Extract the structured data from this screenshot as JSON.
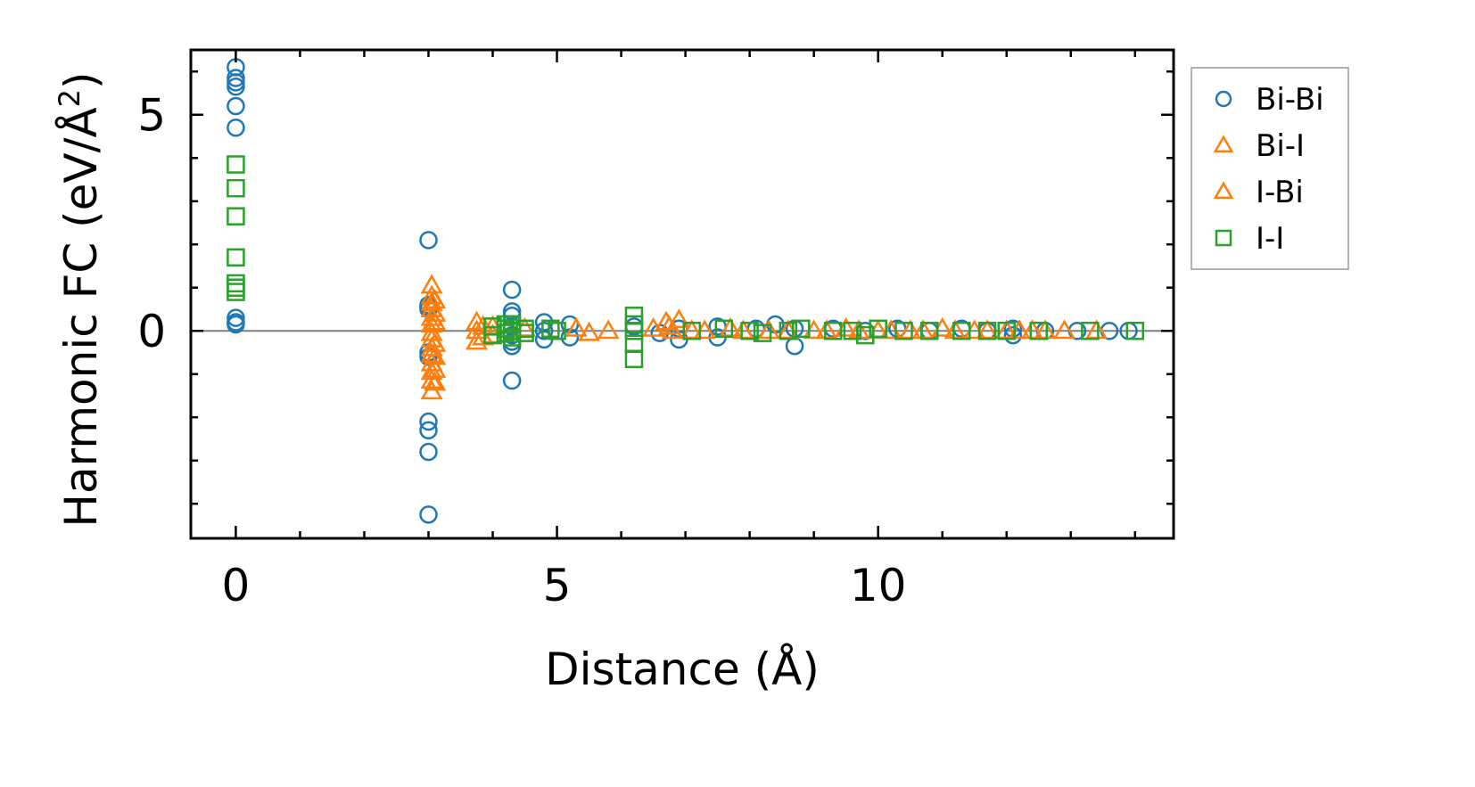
{
  "chart_data": {
    "type": "scatter",
    "title": "",
    "xlabel": "Distance (Å)",
    "ylabel_main": "Harmonic FC (eV/Å",
    "ylabel_sup": "2",
    "ylabel_end": ")",
    "xlim": [
      -0.7,
      14.6
    ],
    "ylim": [
      -4.8,
      6.5
    ],
    "xticks": [
      0,
      5,
      10
    ],
    "xtick_labels": [
      "0",
      "5",
      "10"
    ],
    "yticks": [
      0,
      5
    ],
    "ytick_labels": [
      "0",
      "5"
    ],
    "x_minor_step": 1,
    "y_minor_step": 1,
    "zero_line": true,
    "legend_position": "right, outside plot area",
    "series": [
      {
        "name": "Bi-Bi",
        "marker": "circle",
        "color": "#1f77b4",
        "points": [
          [
            0,
            6.1
          ],
          [
            0,
            5.85
          ],
          [
            0,
            5.75
          ],
          [
            0,
            5.65
          ],
          [
            0,
            5.2
          ],
          [
            0,
            4.7
          ],
          [
            0,
            0.3
          ],
          [
            0,
            0.2
          ],
          [
            0,
            0.15
          ],
          [
            3.0,
            2.1
          ],
          [
            3.0,
            0.6
          ],
          [
            3.0,
            0.55
          ],
          [
            3.0,
            0.5
          ],
          [
            3.0,
            -0.5
          ],
          [
            3.0,
            -0.6
          ],
          [
            3.0,
            -2.1
          ],
          [
            3.0,
            -2.3
          ],
          [
            3.0,
            -2.8
          ],
          [
            3.0,
            -4.25
          ],
          [
            4.3,
            0.95
          ],
          [
            4.3,
            0.45
          ],
          [
            4.3,
            0.35
          ],
          [
            4.3,
            0.1
          ],
          [
            4.3,
            -0.1
          ],
          [
            4.3,
            -0.25
          ],
          [
            4.3,
            -0.35
          ],
          [
            4.3,
            -1.15
          ],
          [
            4.8,
            0.2
          ],
          [
            4.8,
            0.0
          ],
          [
            4.8,
            -0.2
          ],
          [
            5.2,
            0.15
          ],
          [
            5.2,
            -0.15
          ],
          [
            6.2,
            0.1
          ],
          [
            6.6,
            -0.05
          ],
          [
            6.9,
            0.05
          ],
          [
            6.9,
            -0.2
          ],
          [
            7.5,
            0.1
          ],
          [
            7.5,
            -0.15
          ],
          [
            8.1,
            0.05
          ],
          [
            8.4,
            0.15
          ],
          [
            8.7,
            0.05
          ],
          [
            8.7,
            -0.35
          ],
          [
            9.3,
            0.05
          ],
          [
            9.8,
            0.0
          ],
          [
            10.3,
            0.05
          ],
          [
            10.8,
            0.0
          ],
          [
            11.3,
            0.05
          ],
          [
            11.7,
            0.0
          ],
          [
            12.1,
            0.05
          ],
          [
            12.1,
            -0.1
          ],
          [
            12.6,
            0.0
          ],
          [
            13.1,
            0.0
          ],
          [
            13.6,
            0.0
          ],
          [
            13.9,
            0.0
          ]
        ]
      },
      {
        "name": "Bi-I",
        "marker": "triangle",
        "color": "#ff7f0e",
        "points": [
          [
            3.05,
            1.05
          ],
          [
            3.05,
            0.8
          ],
          [
            3.05,
            0.65
          ],
          [
            3.05,
            0.5
          ],
          [
            3.05,
            0.3
          ],
          [
            3.05,
            0.15
          ],
          [
            3.05,
            -0.05
          ],
          [
            3.05,
            -0.2
          ],
          [
            3.05,
            -0.4
          ],
          [
            3.05,
            -0.55
          ],
          [
            3.05,
            -0.75
          ],
          [
            3.05,
            -0.95
          ],
          [
            3.05,
            -1.15
          ],
          [
            3.05,
            -1.4
          ],
          [
            3.75,
            0.2
          ],
          [
            3.75,
            0.0
          ],
          [
            3.75,
            -0.25
          ],
          [
            4.0,
            0.1
          ],
          [
            4.0,
            -0.1
          ],
          [
            5.3,
            0.05
          ],
          [
            5.5,
            -0.05
          ],
          [
            5.8,
            0.0
          ],
          [
            6.7,
            0.2
          ],
          [
            6.8,
            0.0
          ],
          [
            6.9,
            0.25
          ],
          [
            7.3,
            0.0
          ],
          [
            7.7,
            0.05
          ],
          [
            8.3,
            0.0
          ],
          [
            9.0,
            0.0
          ],
          [
            9.5,
            0.05
          ],
          [
            10.0,
            0.0
          ],
          [
            10.5,
            0.0
          ],
          [
            11.0,
            0.05
          ],
          [
            11.5,
            0.0
          ],
          [
            12.0,
            0.0
          ],
          [
            12.4,
            0.0
          ],
          [
            12.9,
            0.0
          ],
          [
            13.4,
            0.0
          ]
        ]
      },
      {
        "name": "I-Bi",
        "marker": "triangle",
        "color": "#ff7f0e",
        "points": [
          [
            3.1,
            0.7
          ],
          [
            3.1,
            0.4
          ],
          [
            3.1,
            0.2
          ],
          [
            3.1,
            -0.3
          ],
          [
            3.1,
            -0.6
          ],
          [
            3.1,
            -0.9
          ],
          [
            3.1,
            -1.2
          ],
          [
            3.85,
            0.1
          ],
          [
            3.85,
            -0.15
          ],
          [
            4.5,
            0.05
          ],
          [
            6.5,
            0.05
          ],
          [
            6.75,
            0.1
          ],
          [
            7.1,
            0.0
          ],
          [
            7.9,
            0.0
          ],
          [
            8.6,
            0.0
          ],
          [
            9.2,
            0.0
          ],
          [
            9.7,
            0.0
          ],
          [
            10.2,
            0.0
          ],
          [
            10.7,
            0.0
          ],
          [
            11.2,
            0.0
          ],
          [
            11.7,
            0.0
          ],
          [
            12.2,
            0.0
          ],
          [
            12.6,
            0.0
          ]
        ]
      },
      {
        "name": "I-I",
        "marker": "square",
        "color": "#2ca02c",
        "points": [
          [
            0,
            3.85
          ],
          [
            0,
            3.3
          ],
          [
            0,
            2.65
          ],
          [
            0,
            1.7
          ],
          [
            0,
            1.1
          ],
          [
            0,
            1.0
          ],
          [
            0,
            0.9
          ],
          [
            4.0,
            0.1
          ],
          [
            4.0,
            -0.1
          ],
          [
            4.2,
            0.15
          ],
          [
            4.2,
            0.05
          ],
          [
            4.2,
            -0.05
          ],
          [
            4.3,
            0.15
          ],
          [
            4.3,
            0.0
          ],
          [
            4.3,
            -0.15
          ],
          [
            4.5,
            0.05
          ],
          [
            4.5,
            -0.05
          ],
          [
            4.9,
            0.05
          ],
          [
            5.0,
            0.0
          ],
          [
            6.2,
            0.35
          ],
          [
            6.2,
            0.15
          ],
          [
            6.2,
            0.0
          ],
          [
            6.2,
            -0.3
          ],
          [
            6.2,
            -0.65
          ],
          [
            7.1,
            0.0
          ],
          [
            7.6,
            0.05
          ],
          [
            8.0,
            0.0
          ],
          [
            8.2,
            -0.05
          ],
          [
            8.6,
            0.0
          ],
          [
            8.8,
            0.05
          ],
          [
            9.3,
            0.0
          ],
          [
            9.6,
            0.0
          ],
          [
            9.8,
            -0.1
          ],
          [
            10.0,
            0.05
          ],
          [
            10.4,
            0.0
          ],
          [
            10.8,
            0.0
          ],
          [
            11.3,
            0.0
          ],
          [
            11.7,
            0.0
          ],
          [
            12.0,
            0.0
          ],
          [
            12.5,
            0.0
          ],
          [
            13.3,
            0.0
          ],
          [
            14.0,
            0.0
          ]
        ]
      }
    ]
  }
}
